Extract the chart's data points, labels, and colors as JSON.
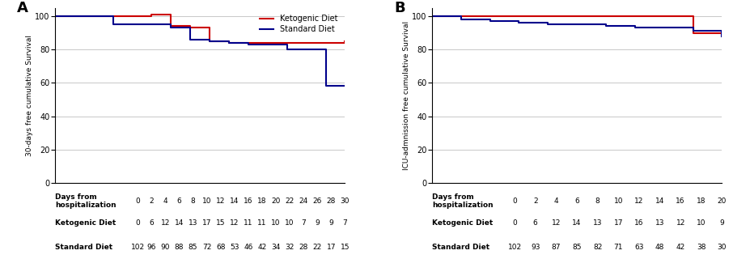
{
  "panel_A": {
    "title": "A",
    "ylabel": "30-days free cumulative Survival",
    "xlabel_main": "Days from\nhospitalization",
    "xticks": [
      0,
      2,
      4,
      6,
      8,
      10,
      12,
      14,
      16,
      18,
      20,
      22,
      24,
      26,
      28,
      30
    ],
    "ylim": [
      0,
      105
    ],
    "yticks": [
      0,
      20,
      40,
      60,
      80,
      100
    ],
    "ketogenic": {
      "x": [
        0,
        8,
        10,
        12,
        14,
        16,
        18,
        30
      ],
      "y": [
        100,
        100,
        101,
        94,
        93,
        85,
        84,
        85
      ]
    },
    "standard": {
      "x": [
        0,
        6,
        8,
        10,
        12,
        14,
        16,
        18,
        20,
        22,
        24,
        26,
        28,
        30
      ],
      "y": [
        100,
        95,
        95,
        95,
        93,
        86,
        85,
        84,
        83,
        83,
        80,
        80,
        58,
        58
      ]
    },
    "table_rows": [
      {
        "label": "Ketogenic Diet",
        "values": [
          "0",
          "6",
          "12",
          "14",
          "13",
          "17",
          "15",
          "12",
          "11",
          "11",
          "10",
          "10",
          "7",
          "9",
          "9",
          "7"
        ]
      },
      {
        "label": "Standard Diet",
        "values": [
          "102",
          "96",
          "90",
          "88",
          "85",
          "72",
          "68",
          "53",
          "46",
          "42",
          "34",
          "32",
          "28",
          "22",
          "17",
          "15"
        ]
      }
    ]
  },
  "panel_B": {
    "title": "B",
    "ylabel": "ICU-admnission free cumulative Survival",
    "xlabel_main": "Days from\nhospitalization",
    "xticks": [
      0,
      2,
      4,
      6,
      8,
      10,
      12,
      14,
      16,
      18,
      20
    ],
    "ylim": [
      0,
      105
    ],
    "yticks": [
      0,
      20,
      40,
      60,
      80,
      100
    ],
    "ketogenic": {
      "x": [
        0,
        2,
        4,
        6,
        8,
        10,
        12,
        14,
        16,
        18,
        20
      ],
      "y": [
        100,
        100,
        100,
        100,
        100,
        100,
        100,
        100,
        100,
        90,
        90
      ]
    },
    "standard": {
      "x": [
        0,
        2,
        4,
        6,
        8,
        10,
        12,
        14,
        16,
        18,
        20
      ],
      "y": [
        100,
        98,
        97,
        96,
        95,
        95,
        94,
        93,
        93,
        91,
        88
      ]
    },
    "table_rows": [
      {
        "label": "Ketogenic Diet",
        "values": [
          "0",
          "6",
          "12",
          "14",
          "13",
          "17",
          "16",
          "13",
          "12",
          "10",
          "9"
        ]
      },
      {
        "label": "Standard Diet",
        "values": [
          "102",
          "93",
          "87",
          "85",
          "82",
          "71",
          "63",
          "48",
          "42",
          "38",
          "30"
        ]
      }
    ]
  },
  "ketogenic_color": "#cc0000",
  "standard_color": "#00008b",
  "legend_labels": [
    "Ketogenic Diet",
    "Standard Diet"
  ],
  "background_color": "#ffffff",
  "grid_color": "#c8c8c8",
  "line_width": 1.5,
  "font_size_title": 13,
  "font_size_ylabel": 6.5,
  "font_size_tick": 7,
  "font_size_table_label": 6.5,
  "font_size_table_val": 6.5,
  "font_size_legend": 7
}
